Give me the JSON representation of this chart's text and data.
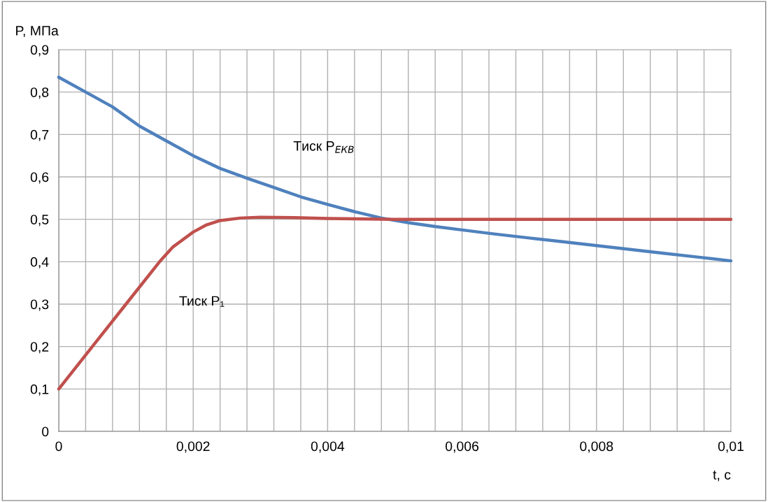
{
  "chart_data": {
    "type": "line",
    "xlabel": "t, с",
    "ylabel": "P, МПа",
    "series": [
      {
        "name": "Тиск P$_{ЕКВ}$",
        "color": "#4f81bd",
        "x": [
          0,
          0.0004,
          0.0008,
          0.0012,
          0.0016,
          0.002,
          0.0024,
          0.0028,
          0.0032,
          0.0036,
          0.004,
          0.0044,
          0.0048,
          0.0052,
          0.0056,
          0.006,
          0.0065,
          0.007,
          0.0075,
          0.008,
          0.0085,
          0.009,
          0.0095,
          0.01
        ],
        "values": [
          0.835,
          0.8,
          0.765,
          0.72,
          0.685,
          0.65,
          0.62,
          0.597,
          0.575,
          0.553,
          0.535,
          0.518,
          0.503,
          0.492,
          0.483,
          0.475,
          0.465,
          0.456,
          0.447,
          0.438,
          0.429,
          0.42,
          0.411,
          0.402
        ]
      },
      {
        "name": "Тиск P₁",
        "color": "#c0504d",
        "x": [
          0,
          0.0005,
          0.001,
          0.0015,
          0.0017,
          0.002,
          0.0022,
          0.0024,
          0.0027,
          0.003,
          0.0035,
          0.004,
          0.005,
          0.006,
          0.008,
          0.01
        ],
        "values": [
          0.1,
          0.2,
          0.3,
          0.4,
          0.435,
          0.47,
          0.487,
          0.497,
          0.503,
          0.505,
          0.504,
          0.502,
          0.5,
          0.5,
          0.5,
          0.5
        ]
      }
    ],
    "xlim": [
      0,
      0.01
    ],
    "ylim": [
      0,
      0.9
    ],
    "xticks": [
      {
        "value": 0,
        "label": "0"
      },
      {
        "value": 0.0004,
        "label": null
      },
      {
        "value": 0.0008,
        "label": null
      },
      {
        "value": 0.0012,
        "label": null
      },
      {
        "value": 0.0016,
        "label": null
      },
      {
        "value": 0.002,
        "label": "0,002"
      },
      {
        "value": 0.0024,
        "label": null
      },
      {
        "value": 0.0028,
        "label": null
      },
      {
        "value": 0.0032,
        "label": null
      },
      {
        "value": 0.0036,
        "label": null
      },
      {
        "value": 0.004,
        "label": "0,004"
      },
      {
        "value": 0.0044,
        "label": null
      },
      {
        "value": 0.0048,
        "label": null
      },
      {
        "value": 0.0052,
        "label": null
      },
      {
        "value": 0.0056,
        "label": null
      },
      {
        "value": 0.006,
        "label": "0,006"
      },
      {
        "value": 0.0064,
        "label": null
      },
      {
        "value": 0.0068,
        "label": null
      },
      {
        "value": 0.0072,
        "label": null
      },
      {
        "value": 0.0076,
        "label": null
      },
      {
        "value": 0.008,
        "label": "0,008"
      },
      {
        "value": 0.0084,
        "label": null
      },
      {
        "value": 0.0088,
        "label": null
      },
      {
        "value": 0.0092,
        "label": null
      },
      {
        "value": 0.0096,
        "label": null
      },
      {
        "value": 0.01,
        "label": "0,01"
      }
    ],
    "yticks": [
      0,
      {
        "value": 0.1,
        "label": "0,1"
      },
      {
        "value": 0.2,
        "label": "0,2"
      },
      {
        "value": 0.3,
        "label": "0,3"
      },
      {
        "value": 0.4,
        "label": "0,4"
      },
      {
        "value": 0.5,
        "label": "0,5"
      },
      {
        "value": 0.6,
        "label": "0,6"
      },
      {
        "value": 0.7,
        "label": "0,7"
      },
      {
        "value": 0.8,
        "label": "0,8"
      },
      {
        "value": 0.9,
        "label": "0,9"
      }
    ],
    "grid": true,
    "legend": false,
    "marker": "none",
    "line_style": "solid"
  }
}
